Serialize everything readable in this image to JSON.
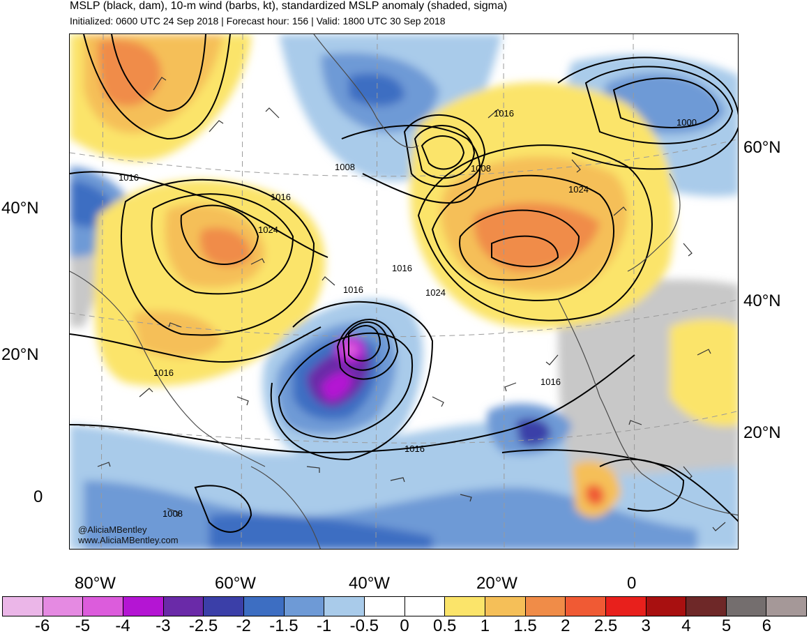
{
  "header": {
    "title": "MSLP (black, dam), 10-m wind (barbs, kt), standardized MSLP anomaly (shaded, sigma)",
    "subtitle": "Initialized: 0600 UTC 24 Sep 2018 | Forecast hour: 156 | Valid: 1800 UTC 30 Sep 2018"
  },
  "map": {
    "lat_labels_left": [
      "40°N",
      "20°N",
      "0"
    ],
    "lat_labels_right": [
      "60°N",
      "40°N",
      "20°N"
    ],
    "lon_labels": [
      "80°W",
      "60°W",
      "40°W",
      "20°W",
      "0"
    ],
    "contour_labels": [
      "1016",
      "1016",
      "1024",
      "1008",
      "1008",
      "1016",
      "1024",
      "1000",
      "1016",
      "1024",
      "1016",
      "1016",
      "1016",
      "1016",
      "1008"
    ],
    "watermark": [
      "@AliciaMBentley",
      "www.AliciaMBentley.com"
    ]
  },
  "colorbar": {
    "labels": [
      "-6",
      "-5",
      "-4",
      "-3",
      "-2.5",
      "-2",
      "-1.5",
      "-1",
      "-0.5",
      "0",
      "0.5",
      "1",
      "1.5",
      "2",
      "2.5",
      "3",
      "4",
      "5",
      "6"
    ],
    "colors": [
      "#ebb6e8",
      "#e58ae2",
      "#dc5cdc",
      "#b415d3",
      "#6a2aa8",
      "#3b3fa8",
      "#3d6ec2",
      "#6e9ad6",
      "#a9cbea",
      "#ffffff",
      "#ffffff",
      "#fbe46a",
      "#f5bf58",
      "#f08c48",
      "#f05a34",
      "#e8201c",
      "#a81010",
      "#6e2828",
      "#746e6e",
      "#a59898"
    ]
  }
}
